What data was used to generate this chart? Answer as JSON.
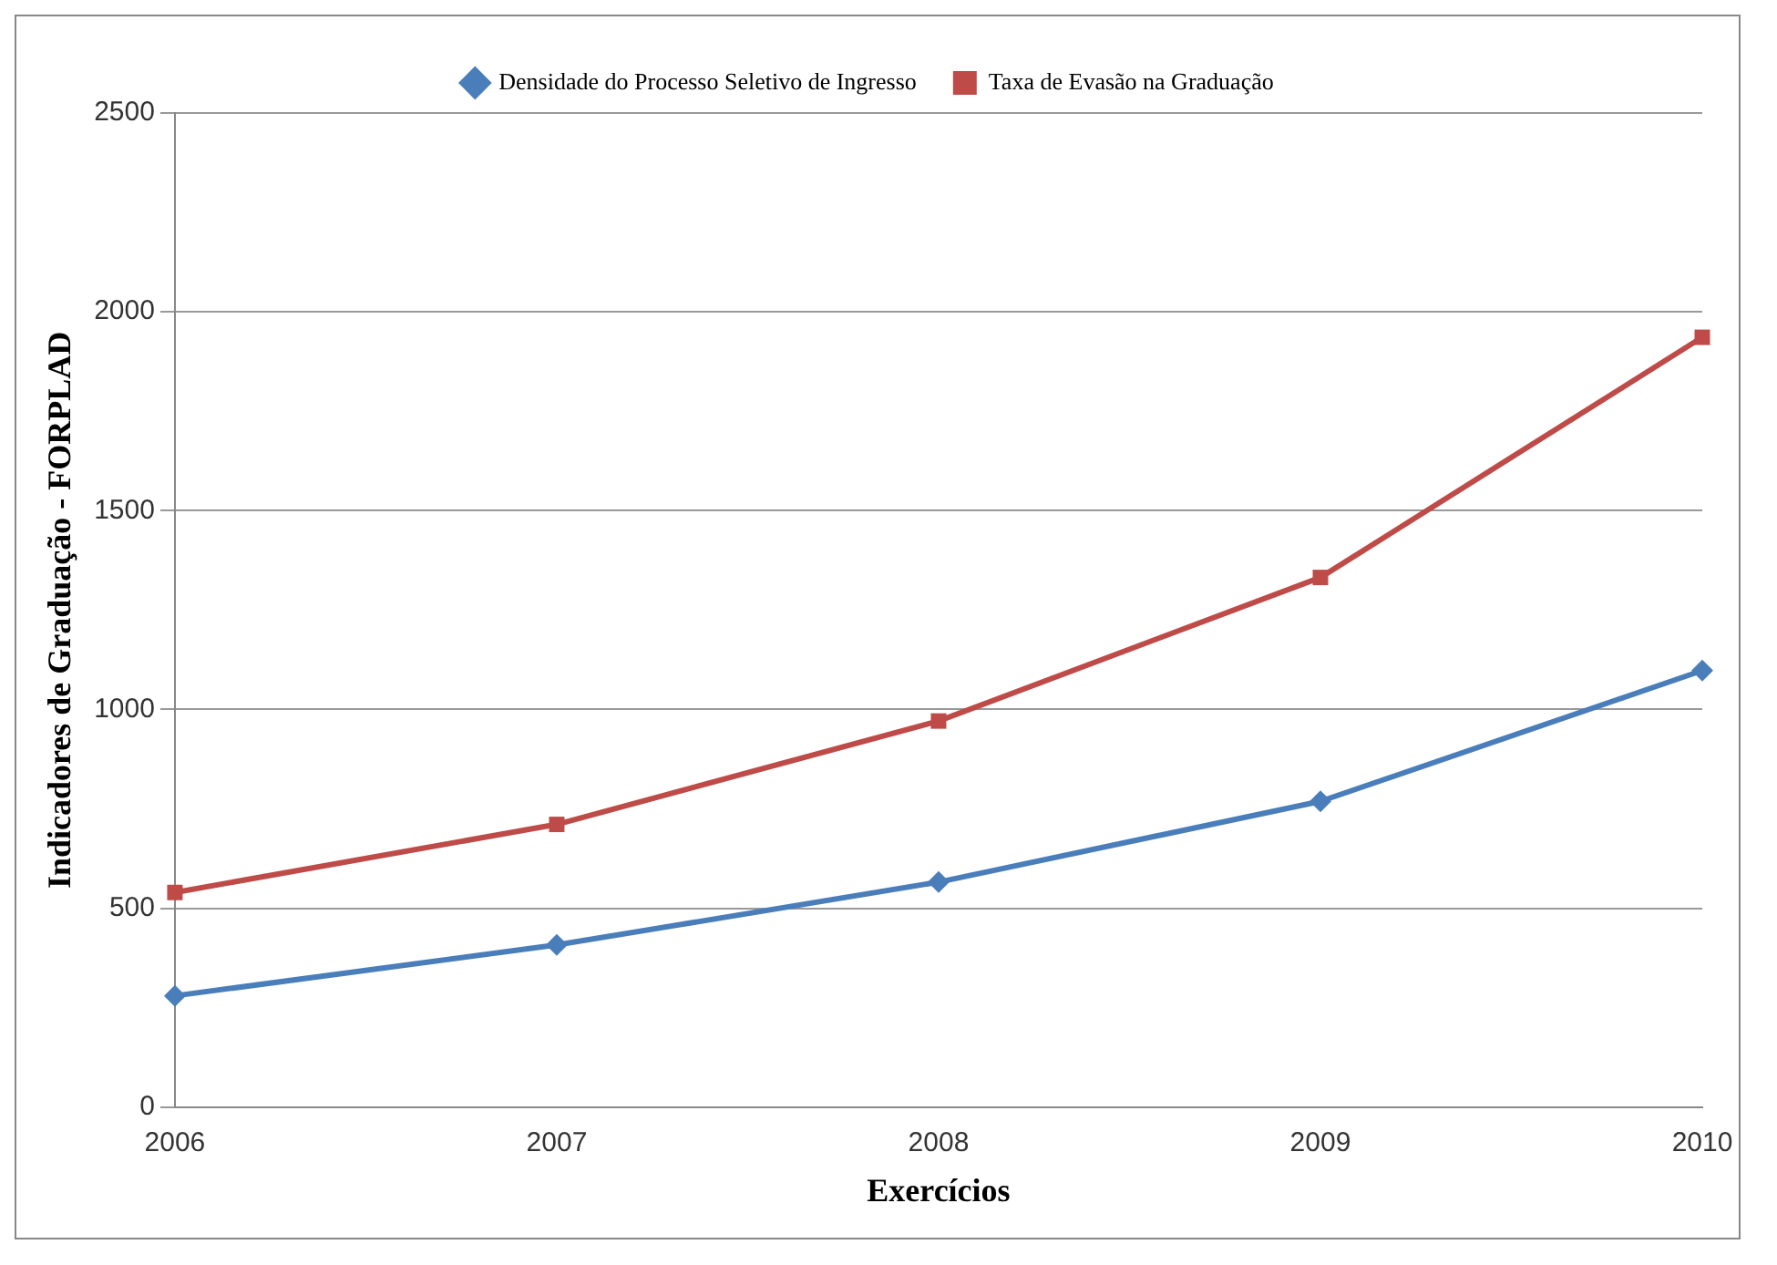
{
  "chart_data": {
    "type": "line",
    "xlabel": "Exercícios",
    "ylabel": "Indicadores de Graduação - FORPLAD",
    "categories": [
      "2006",
      "2007",
      "2008",
      "2009",
      "2010"
    ],
    "series": [
      {
        "name": "Densidade do Processo Seletivo de Ingresso",
        "color": "#4a7ebb",
        "marker": "diamond",
        "values": [
          280,
          408,
          566,
          769,
          1098
        ]
      },
      {
        "name": "Taxa de Evasão na Graduação",
        "color": "#be4b48",
        "marker": "square",
        "values": [
          540,
          711,
          971,
          1332,
          1936
        ]
      }
    ],
    "ylim": [
      0,
      2500
    ],
    "yticks": [
      0,
      500,
      1000,
      1500,
      2000,
      2500
    ],
    "grid": "y",
    "legend": "top",
    "line_style": "solid"
  }
}
